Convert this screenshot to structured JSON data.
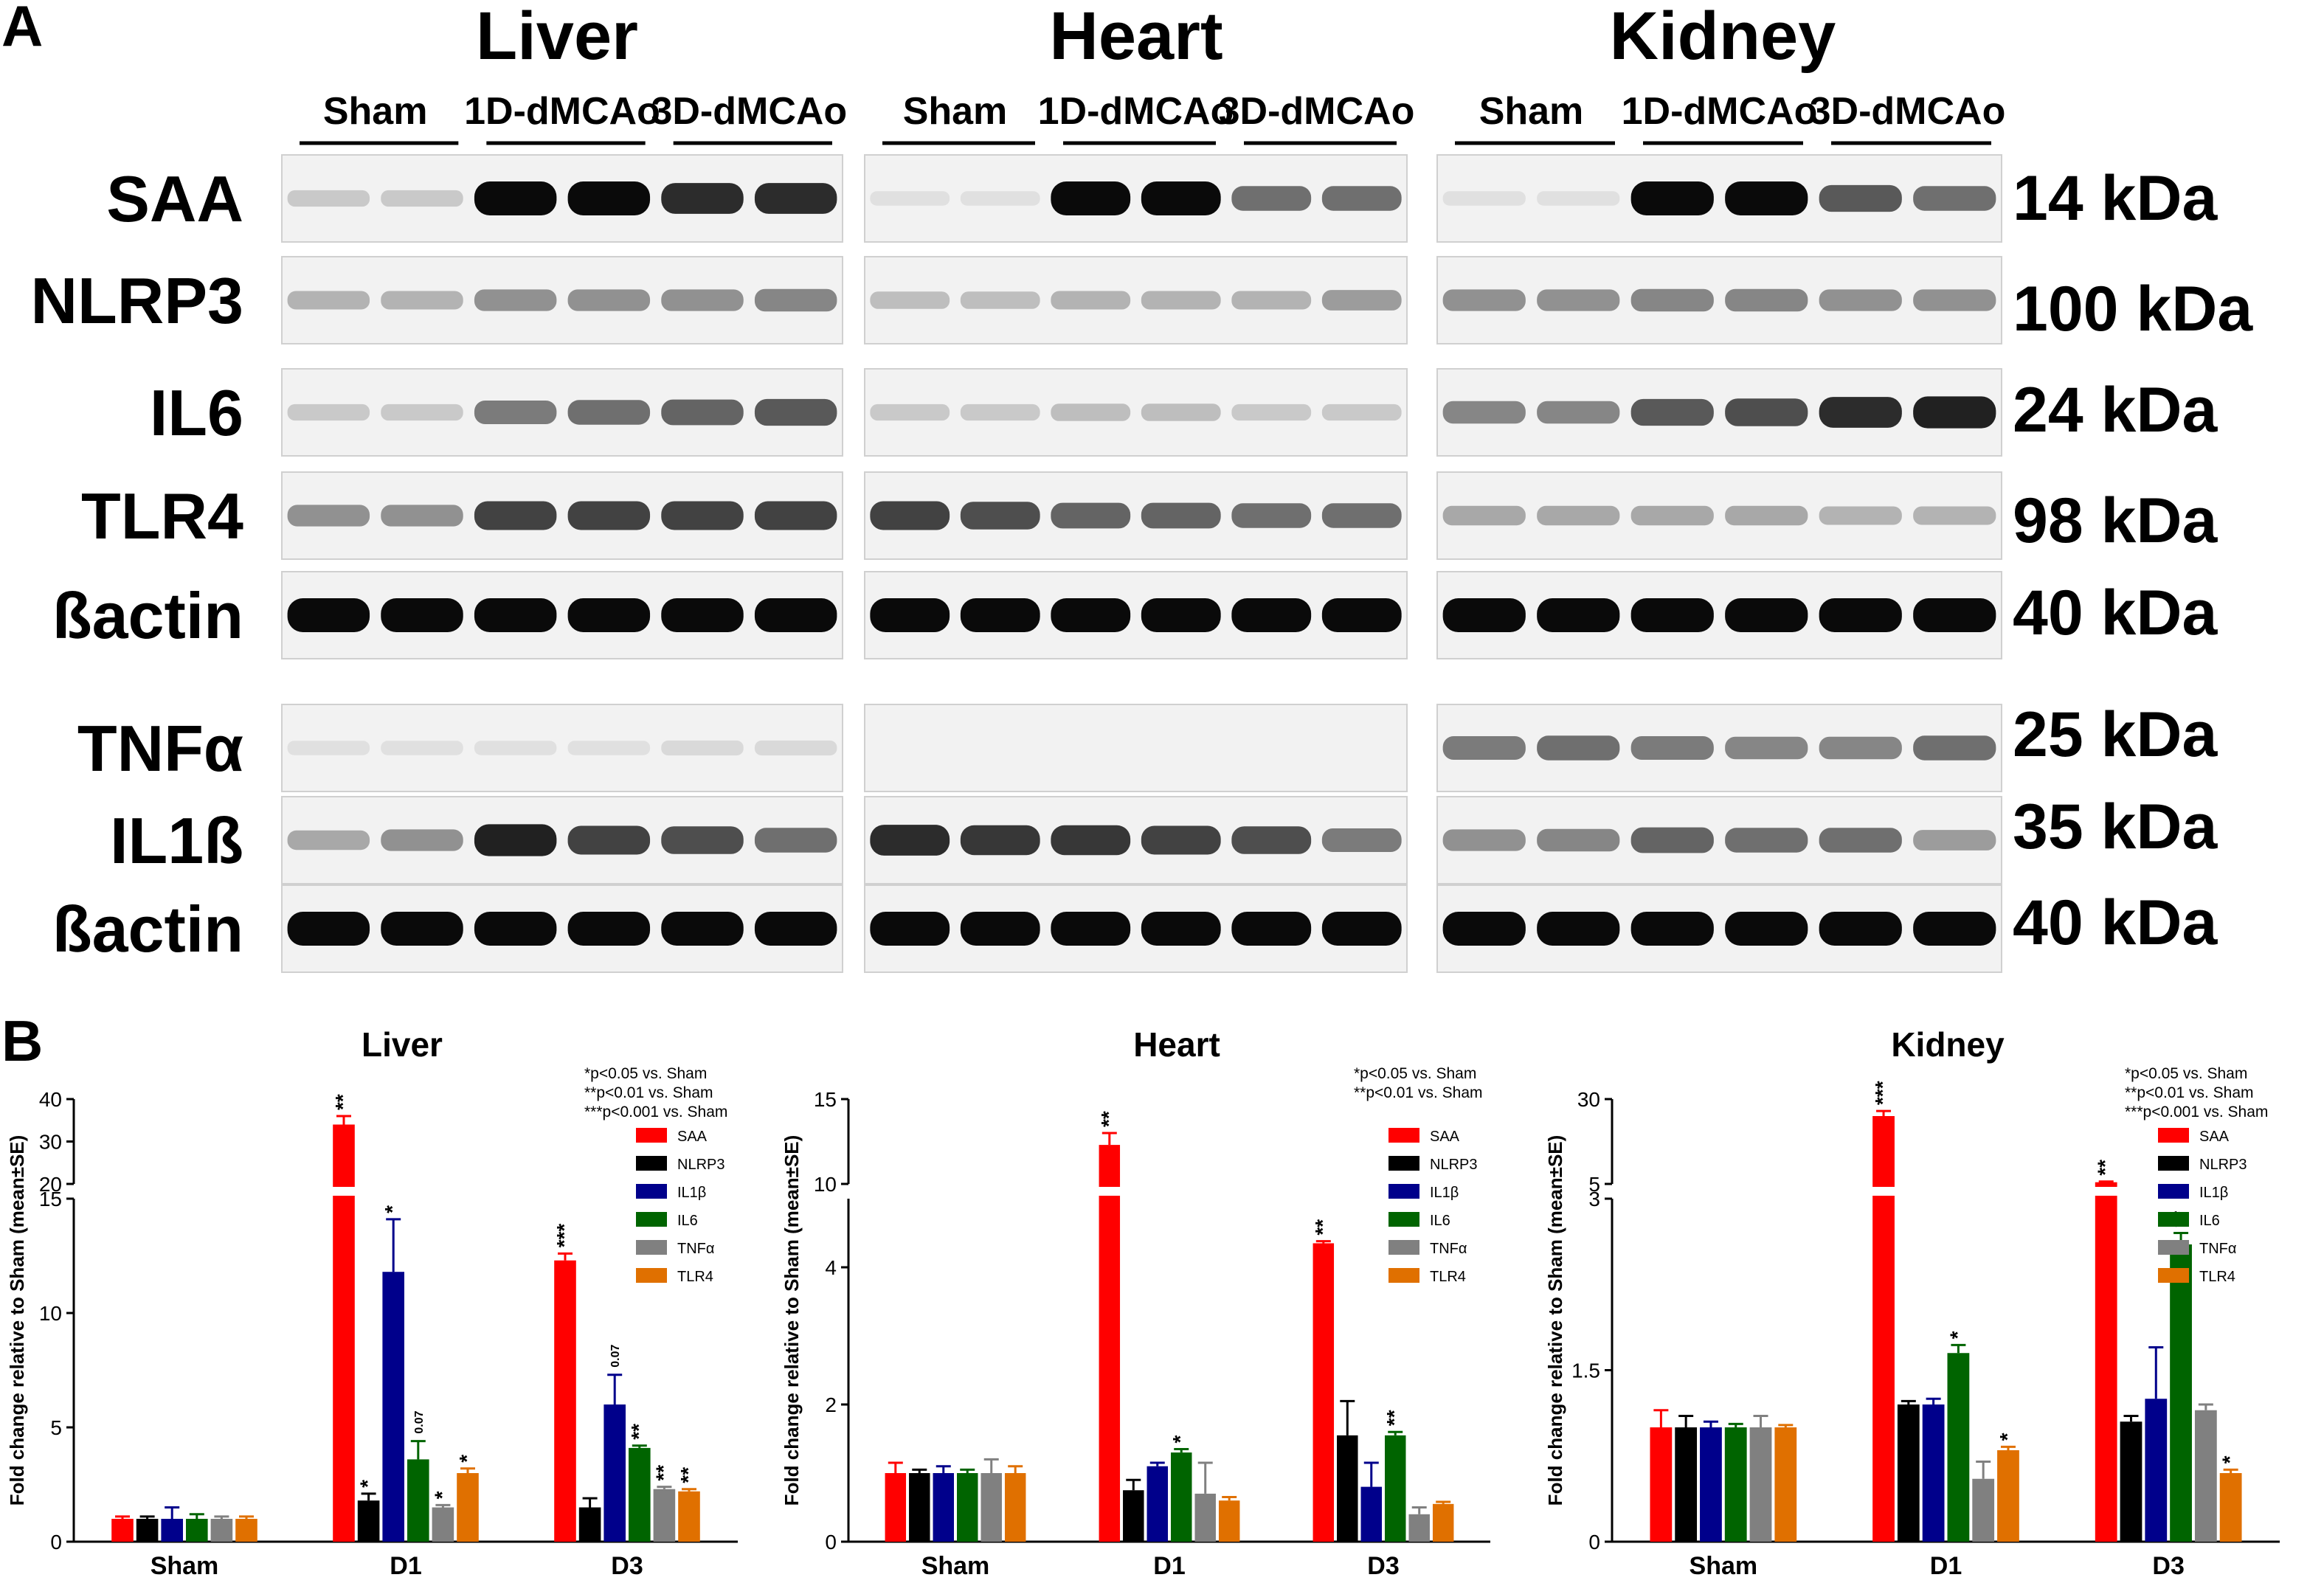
{
  "panel_a": {
    "letter": "A",
    "organs": [
      "Liver",
      "Heart",
      "Kidney"
    ],
    "groups": [
      "Sham",
      "1D-dMCAo",
      "3D-dMCAo"
    ],
    "proteins": [
      {
        "name": "SAA",
        "kda": "14 kDa"
      },
      {
        "name": "NLRP3",
        "kda": "100 kDa"
      },
      {
        "name": "IL6",
        "kda": "24 kDa"
      },
      {
        "name": "TLR4",
        "kda": "98 kDa"
      },
      {
        "name": "ßactin",
        "kda": "40 kDa"
      },
      {
        "name": "TNFα",
        "kda": "25 kDa"
      },
      {
        "name": "IL1ß",
        "kda": "35 kDa"
      },
      {
        "name": "ßactin",
        "kda": "40 kDa"
      }
    ],
    "band_intensity": {
      "Liver": [
        [
          0.15,
          0.15,
          1,
          1,
          0.85,
          0.85
        ],
        [
          0.25,
          0.25,
          0.4,
          0.4,
          0.4,
          0.45
        ],
        [
          0.15,
          0.15,
          0.5,
          0.55,
          0.6,
          0.65
        ],
        [
          0.4,
          0.4,
          0.75,
          0.75,
          0.75,
          0.75
        ],
        [
          1,
          1,
          1,
          1,
          1,
          1
        ],
        [
          0.05,
          0.05,
          0.05,
          0.05,
          0.08,
          0.08
        ],
        [
          0.3,
          0.4,
          0.9,
          0.75,
          0.7,
          0.55
        ],
        [
          1,
          1,
          1,
          1,
          1,
          1
        ]
      ],
      "Heart": [
        [
          0.05,
          0.05,
          1,
          1,
          0.55,
          0.55
        ],
        [
          0.2,
          0.2,
          0.25,
          0.25,
          0.25,
          0.35
        ],
        [
          0.15,
          0.15,
          0.2,
          0.2,
          0.15,
          0.15
        ],
        [
          0.75,
          0.7,
          0.6,
          0.6,
          0.55,
          0.55
        ],
        [
          1,
          1,
          1,
          1,
          1,
          1
        ],
        [
          0.0,
          0.0,
          0.0,
          0.0,
          0.0,
          0.0
        ],
        [
          0.85,
          0.8,
          0.8,
          0.75,
          0.7,
          0.5
        ],
        [
          1,
          1,
          1,
          1,
          1,
          1
        ]
      ],
      "Kidney": [
        [
          0.05,
          0.05,
          1,
          1,
          0.65,
          0.55
        ],
        [
          0.4,
          0.4,
          0.45,
          0.45,
          0.4,
          0.4
        ],
        [
          0.45,
          0.45,
          0.65,
          0.7,
          0.85,
          0.9
        ],
        [
          0.3,
          0.3,
          0.3,
          0.3,
          0.25,
          0.25
        ],
        [
          1,
          1,
          1,
          1,
          1,
          1
        ],
        [
          0.5,
          0.55,
          0.5,
          0.45,
          0.45,
          0.55
        ],
        [
          0.4,
          0.45,
          0.6,
          0.55,
          0.55,
          0.35
        ],
        [
          1,
          1,
          1,
          1,
          1,
          1
        ]
      ]
    }
  },
  "panel_b": {
    "letter": "B",
    "legend_labels": [
      "SAA",
      "NLRP3",
      "IL1β",
      "IL6",
      "TNFα",
      "TLR4"
    ],
    "legend_colors": [
      "#ff0000",
      "#000000",
      "#00008b",
      "#006400",
      "#808080",
      "#e07000"
    ]
  },
  "chart_data": [
    {
      "type": "bar",
      "title": "Liver",
      "ylabel": "Fold change relative to Sham (mean±SE)",
      "categories": [
        "Sham",
        "D1",
        "D3"
      ],
      "y_axis": {
        "lower_range": [
          0,
          15
        ],
        "lower_ticks": [
          0,
          5,
          10,
          15
        ],
        "upper_range": [
          20,
          40
        ],
        "upper_ticks": [
          20,
          30,
          40
        ],
        "broken": true
      },
      "significance_note": [
        "*p<0.05 vs. Sham",
        "**p<0.01 vs. Sham",
        "***p<0.001 vs. Sham"
      ],
      "series": [
        {
          "name": "SAA",
          "values": [
            1.0,
            34.0,
            12.3
          ],
          "errors": [
            0.1,
            2.0,
            0.3
          ],
          "labels": [
            "",
            "**",
            "***"
          ]
        },
        {
          "name": "NLRP3",
          "values": [
            1.0,
            1.8,
            1.5
          ],
          "errors": [
            0.1,
            0.3,
            0.4
          ],
          "labels": [
            "",
            "*",
            ""
          ]
        },
        {
          "name": "IL1β",
          "values": [
            1.0,
            11.8,
            6.0
          ],
          "errors": [
            0.5,
            2.3,
            1.3
          ],
          "labels": [
            "",
            "*",
            "0.07"
          ]
        },
        {
          "name": "IL6",
          "values": [
            1.0,
            3.6,
            4.1
          ],
          "errors": [
            0.2,
            0.8,
            0.1
          ],
          "labels": [
            "",
            "0.07",
            "**"
          ]
        },
        {
          "name": "TNFα",
          "values": [
            1.0,
            1.5,
            2.3
          ],
          "errors": [
            0.1,
            0.1,
            0.1
          ],
          "labels": [
            "",
            "*",
            "**"
          ]
        },
        {
          "name": "TLR4",
          "values": [
            1.0,
            3.0,
            2.2
          ],
          "errors": [
            0.1,
            0.2,
            0.1
          ],
          "labels": [
            "",
            "*",
            "**"
          ]
        }
      ]
    },
    {
      "type": "bar",
      "title": "Heart",
      "ylabel": "Fold change relative to Sham (mean±SE)",
      "categories": [
        "Sham",
        "D1",
        "D3"
      ],
      "y_axis": {
        "lower_range": [
          0,
          5
        ],
        "lower_ticks": [
          0,
          2,
          4
        ],
        "upper_range": [
          10,
          15
        ],
        "upper_ticks": [
          10,
          15
        ],
        "broken": true
      },
      "significance_note": [
        "*p<0.05 vs. Sham",
        "**p<0.01 vs. Sham"
      ],
      "series": [
        {
          "name": "SAA",
          "values": [
            1.0,
            12.3,
            4.35
          ],
          "errors": [
            0.15,
            0.7,
            0.03
          ],
          "labels": [
            "",
            "**",
            "**"
          ]
        },
        {
          "name": "NLRP3",
          "values": [
            1.0,
            0.75,
            1.55
          ],
          "errors": [
            0.05,
            0.15,
            0.5
          ],
          "labels": [
            "",
            "",
            ""
          ]
        },
        {
          "name": "IL1β",
          "values": [
            1.0,
            1.1,
            0.8
          ],
          "errors": [
            0.1,
            0.05,
            0.35
          ],
          "labels": [
            "",
            "",
            ""
          ]
        },
        {
          "name": "IL6",
          "values": [
            1.0,
            1.3,
            1.55
          ],
          "errors": [
            0.05,
            0.05,
            0.05
          ],
          "labels": [
            "",
            "*",
            "**"
          ]
        },
        {
          "name": "TNFα",
          "values": [
            1.0,
            0.7,
            0.4
          ],
          "errors": [
            0.2,
            0.45,
            0.1
          ],
          "labels": [
            "",
            "",
            ""
          ]
        },
        {
          "name": "TLR4",
          "values": [
            1.0,
            0.6,
            0.55
          ],
          "errors": [
            0.1,
            0.05,
            0.03
          ],
          "labels": [
            "",
            "",
            ""
          ]
        }
      ]
    },
    {
      "type": "bar",
      "title": "Kidney",
      "ylabel": "Fold change relative to Sham (mean±SE)",
      "categories": [
        "Sham",
        "D1",
        "D3"
      ],
      "y_axis": {
        "lower_range": [
          0,
          3
        ],
        "lower_ticks": [
          0,
          1.5,
          3
        ],
        "upper_range": [
          5,
          30
        ],
        "upper_ticks": [
          5,
          30
        ],
        "broken": true
      },
      "significance_note": [
        "*p<0.05 vs. Sham",
        "**p<0.01 vs. Sham",
        "***p<0.001 vs. Sham"
      ],
      "series": [
        {
          "name": "SAA",
          "values": [
            1.0,
            25.0,
            5.5
          ],
          "errors": [
            0.15,
            1.5,
            0.2
          ],
          "labels": [
            "",
            "***",
            "**"
          ]
        },
        {
          "name": "NLRP3",
          "values": [
            1.0,
            1.2,
            1.05
          ],
          "errors": [
            0.1,
            0.03,
            0.05
          ],
          "labels": [
            "",
            "",
            ""
          ]
        },
        {
          "name": "IL1β",
          "values": [
            1.0,
            1.2,
            1.25
          ],
          "errors": [
            0.05,
            0.05,
            0.45
          ],
          "labels": [
            "",
            "",
            ""
          ]
        },
        {
          "name": "IL6",
          "values": [
            1.0,
            1.65,
            2.6
          ],
          "errors": [
            0.03,
            0.07,
            0.1
          ],
          "labels": [
            "",
            "*",
            "**"
          ]
        },
        {
          "name": "TNFα",
          "values": [
            1.0,
            0.55,
            1.15
          ],
          "errors": [
            0.1,
            0.15,
            0.05
          ],
          "labels": [
            "",
            "",
            ""
          ]
        },
        {
          "name": "TLR4",
          "values": [
            1.0,
            0.8,
            0.6
          ],
          "errors": [
            0.02,
            0.03,
            0.03
          ],
          "labels": [
            "",
            "*",
            "*"
          ]
        }
      ]
    }
  ]
}
